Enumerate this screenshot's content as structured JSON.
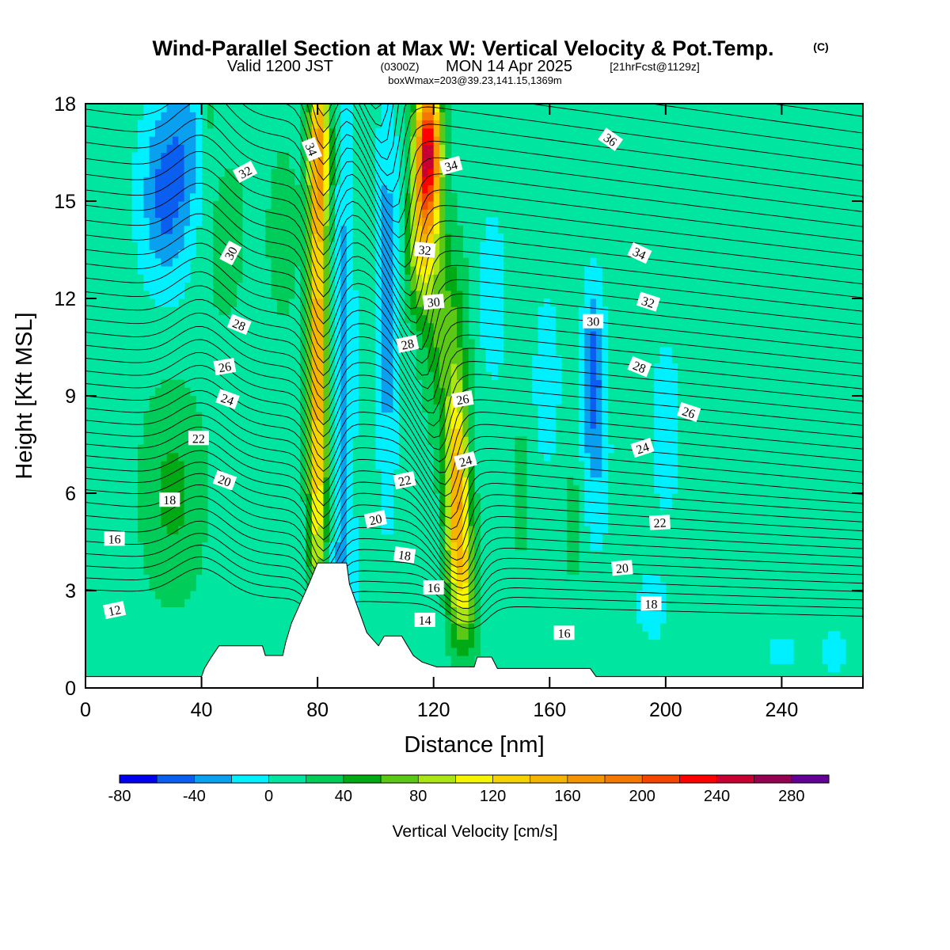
{
  "title": {
    "main": "Wind-Parallel Section at Max W: Vertical Velocity & Pot.Temp.",
    "main_suffix": "(C)",
    "valid_prefix": "Valid 1200 JST",
    "valid_z": "(0300Z)",
    "valid_date": "MON 14 Apr 2025",
    "valid_fcst": "[21hrFcst@1129z]",
    "box": "boxWmax=203@39.23,141.15,1369m"
  },
  "chart_data": {
    "type": "heatmap",
    "xlabel": "Distance [nm]",
    "ylabel": "Height [Kft MSL]",
    "xlim": [
      0,
      268
    ],
    "ylim": [
      0,
      18
    ],
    "x_ticks": [
      "0",
      "40",
      "80",
      "120",
      "160",
      "200",
      "240"
    ],
    "y_ticks": [
      "0",
      "3",
      "6",
      "9",
      "12",
      "15",
      "18"
    ],
    "colorbar": {
      "title": "Vertical Velocity [cm/s]",
      "bounds": [
        -80,
        -60,
        -40,
        -20,
        0,
        20,
        40,
        60,
        80,
        100,
        120,
        140,
        160,
        180,
        200,
        220,
        240,
        260,
        280,
        300
      ],
      "tick_labels": [
        "-80",
        "-40",
        "0",
        "40",
        "80",
        "120",
        "160",
        "200",
        "240",
        "280"
      ],
      "colors": [
        "#0000f0",
        "#0a5ff0",
        "#0aa0f0",
        "#00f0ff",
        "#00e6a0",
        "#00cc5a",
        "#00aa14",
        "#5ac814",
        "#aae614",
        "#f5f500",
        "#f5d200",
        "#f5b400",
        "#f59600",
        "#f57800",
        "#f54600",
        "#ff0000",
        "#c80032",
        "#960050",
        "#640096"
      ]
    },
    "terrain_kft": [
      [
        0,
        0.35
      ],
      [
        40,
        0.35
      ],
      [
        41,
        0.6
      ],
      [
        43,
        0.9
      ],
      [
        46,
        1.3
      ],
      [
        61,
        1.3
      ],
      [
        62,
        1.0
      ],
      [
        68,
        1.0
      ],
      [
        69,
        1.4
      ],
      [
        71,
        2.0
      ],
      [
        74,
        2.6
      ],
      [
        77,
        3.2
      ],
      [
        80,
        3.85
      ],
      [
        90,
        3.85
      ],
      [
        91,
        3.2
      ],
      [
        95,
        2.2
      ],
      [
        97,
        1.7
      ],
      [
        101,
        1.3
      ],
      [
        103,
        1.6
      ],
      [
        109,
        1.6
      ],
      [
        111,
        1.3
      ],
      [
        113,
        1.0
      ],
      [
        116,
        0.8
      ],
      [
        121,
        0.65
      ],
      [
        134,
        0.65
      ],
      [
        135,
        0.95
      ],
      [
        140,
        0.95
      ],
      [
        142,
        0.6
      ],
      [
        174,
        0.6
      ],
      [
        176,
        0.35
      ],
      [
        268,
        0.35
      ]
    ],
    "isentrope_labels": [
      {
        "text": "12",
        "x": 10,
        "y": 2.4,
        "angle": -12
      },
      {
        "text": "14",
        "x": 117,
        "y": 2.1,
        "angle": 0
      },
      {
        "text": "16",
        "x": 10,
        "y": 4.6,
        "angle": 0
      },
      {
        "text": "16",
        "x": 120,
        "y": 3.1,
        "angle": 0
      },
      {
        "text": "16",
        "x": 165,
        "y": 1.7,
        "angle": 0
      },
      {
        "text": "18",
        "x": 29,
        "y": 5.8,
        "angle": 0
      },
      {
        "text": "18",
        "x": 110,
        "y": 4.1,
        "angle": 8
      },
      {
        "text": "18",
        "x": 195,
        "y": 2.6,
        "angle": 0
      },
      {
        "text": "20",
        "x": 48,
        "y": 6.4,
        "angle": 20
      },
      {
        "text": "20",
        "x": 100,
        "y": 5.2,
        "angle": -12
      },
      {
        "text": "20",
        "x": 185,
        "y": 3.7,
        "angle": -5
      },
      {
        "text": "22",
        "x": 39,
        "y": 7.7,
        "angle": 0
      },
      {
        "text": "22",
        "x": 110,
        "y": 6.4,
        "angle": -12
      },
      {
        "text": "22",
        "x": 198,
        "y": 5.1,
        "angle": -3
      },
      {
        "text": "24",
        "x": 49,
        "y": 8.9,
        "angle": 20
      },
      {
        "text": "24",
        "x": 131,
        "y": 7.0,
        "angle": -15
      },
      {
        "text": "24",
        "x": 192,
        "y": 7.4,
        "angle": -18
      },
      {
        "text": "26",
        "x": 48,
        "y": 9.9,
        "angle": -10
      },
      {
        "text": "26",
        "x": 130,
        "y": 8.9,
        "angle": -10
      },
      {
        "text": "26",
        "x": 208,
        "y": 8.5,
        "angle": 18
      },
      {
        "text": "28",
        "x": 53,
        "y": 11.2,
        "angle": 22
      },
      {
        "text": "28",
        "x": 111,
        "y": 10.6,
        "angle": -12
      },
      {
        "text": "28",
        "x": 191,
        "y": 9.9,
        "angle": 22
      },
      {
        "text": "30",
        "x": 50,
        "y": 13.4,
        "angle": -62
      },
      {
        "text": "30",
        "x": 120,
        "y": 11.9,
        "angle": -5
      },
      {
        "text": "30",
        "x": 175,
        "y": 11.3,
        "angle": 0
      },
      {
        "text": "32",
        "x": 55,
        "y": 15.9,
        "angle": -28
      },
      {
        "text": "32",
        "x": 117,
        "y": 13.5,
        "angle": 5
      },
      {
        "text": "32",
        "x": 194,
        "y": 11.9,
        "angle": 18
      },
      {
        "text": "34",
        "x": 78,
        "y": 16.6,
        "angle": 68
      },
      {
        "text": "34",
        "x": 126,
        "y": 16.1,
        "angle": -15
      },
      {
        "text": "34",
        "x": 191,
        "y": 13.4,
        "angle": 25
      },
      {
        "text": "36",
        "x": 181,
        "y": 16.9,
        "angle": 35
      }
    ]
  }
}
